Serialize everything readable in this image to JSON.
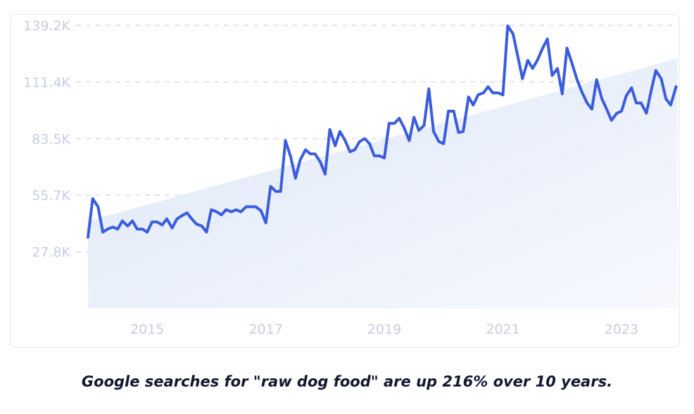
{
  "chart_data": {
    "type": "line",
    "title": "",
    "xlabel": "",
    "ylabel": "",
    "y_ticks": [
      "139.2K",
      "111.4K",
      "83.5K",
      "55.7K",
      "27.8K"
    ],
    "x_ticks": [
      "2015",
      "2017",
      "2019",
      "2021",
      "2023"
    ],
    "ylim": [
      0,
      139200
    ],
    "xlim": [
      2014.0,
      2023.95
    ],
    "grid": "horizontal dashed",
    "trend_shading": true,
    "series": [
      {
        "x": [
          2014.0,
          2014.08,
          2014.17,
          2014.25,
          2014.33,
          2014.42,
          2014.5,
          2014.58,
          2014.67,
          2014.75,
          2014.83,
          2014.92,
          2015.0,
          2015.08,
          2015.17,
          2015.25,
          2015.33,
          2015.42,
          2015.5,
          2015.58,
          2015.67,
          2015.75,
          2015.83,
          2015.92,
          2016.0,
          2016.08,
          2016.17,
          2016.25,
          2016.33,
          2016.42,
          2016.5,
          2016.58,
          2016.67,
          2016.75,
          2016.83,
          2016.92,
          2017.0,
          2017.08,
          2017.17,
          2017.25,
          2017.33,
          2017.42,
          2017.5,
          2017.58,
          2017.67,
          2017.75,
          2017.83,
          2017.92,
          2018.0,
          2018.08,
          2018.17,
          2018.25,
          2018.33,
          2018.42,
          2018.5,
          2018.58,
          2018.67,
          2018.75,
          2018.83,
          2018.92,
          2019.0,
          2019.08,
          2019.17,
          2019.25,
          2019.33,
          2019.42,
          2019.5,
          2019.58,
          2019.67,
          2019.75,
          2019.83,
          2019.92,
          2020.0,
          2020.08,
          2020.17,
          2020.25,
          2020.33,
          2020.42,
          2020.5,
          2020.58,
          2020.67,
          2020.75,
          2020.83,
          2020.92,
          2021.0,
          2021.08,
          2021.17,
          2021.25,
          2021.33,
          2021.42,
          2021.5,
          2021.58,
          2021.67,
          2021.75,
          2021.83,
          2021.92,
          2022.0,
          2022.08,
          2022.17,
          2022.25,
          2022.33,
          2022.42,
          2022.5,
          2022.58,
          2022.67,
          2022.75,
          2022.83,
          2022.92,
          2023.0,
          2023.08,
          2023.17,
          2023.25,
          2023.33,
          2023.42,
          2023.5,
          2023.58,
          2023.67,
          2023.75,
          2023.83,
          2023.92
        ],
        "values": [
          35000,
          54000,
          50000,
          37500,
          39000,
          40000,
          39000,
          43000,
          40500,
          43000,
          39000,
          39000,
          37500,
          42500,
          42500,
          41000,
          44000,
          39500,
          44000,
          45500,
          47000,
          44000,
          41500,
          40500,
          37500,
          48500,
          47500,
          46000,
          48500,
          47500,
          48500,
          47500,
          50000,
          50000,
          50000,
          48000,
          42000,
          60000,
          57500,
          57500,
          82500,
          74500,
          64000,
          73000,
          78000,
          76000,
          76000,
          72000,
          66000,
          88000,
          80000,
          87000,
          83000,
          77000,
          78000,
          82000,
          83500,
          81000,
          75000,
          75000,
          74000,
          91000,
          91000,
          93500,
          89000,
          82500,
          94000,
          87500,
          90000,
          108000,
          87000,
          82000,
          81000,
          97000,
          97000,
          86500,
          87000,
          104000,
          100000,
          105000,
          106000,
          109000,
          106000,
          106000,
          105000,
          139000,
          135000,
          124000,
          113000,
          122000,
          118000,
          122000,
          128000,
          132500,
          114500,
          118000,
          105500,
          128000,
          120000,
          112500,
          106500,
          101000,
          98000,
          112500,
          103000,
          98000,
          92500,
          96000,
          97000,
          104500,
          108500,
          101000,
          101000,
          96000,
          107000,
          117000,
          113000,
          103000,
          100000,
          109000
        ]
      }
    ],
    "trend": {
      "start": 43000,
      "end": 123000
    }
  },
  "caption": "Google searches for \"raw dog food\" are up 216% over 10 years.",
  "colors": {
    "line": "#3b5ddd",
    "grid": "#d8dcec",
    "tick": "#c7cde4",
    "fill": "#e8effb"
  }
}
